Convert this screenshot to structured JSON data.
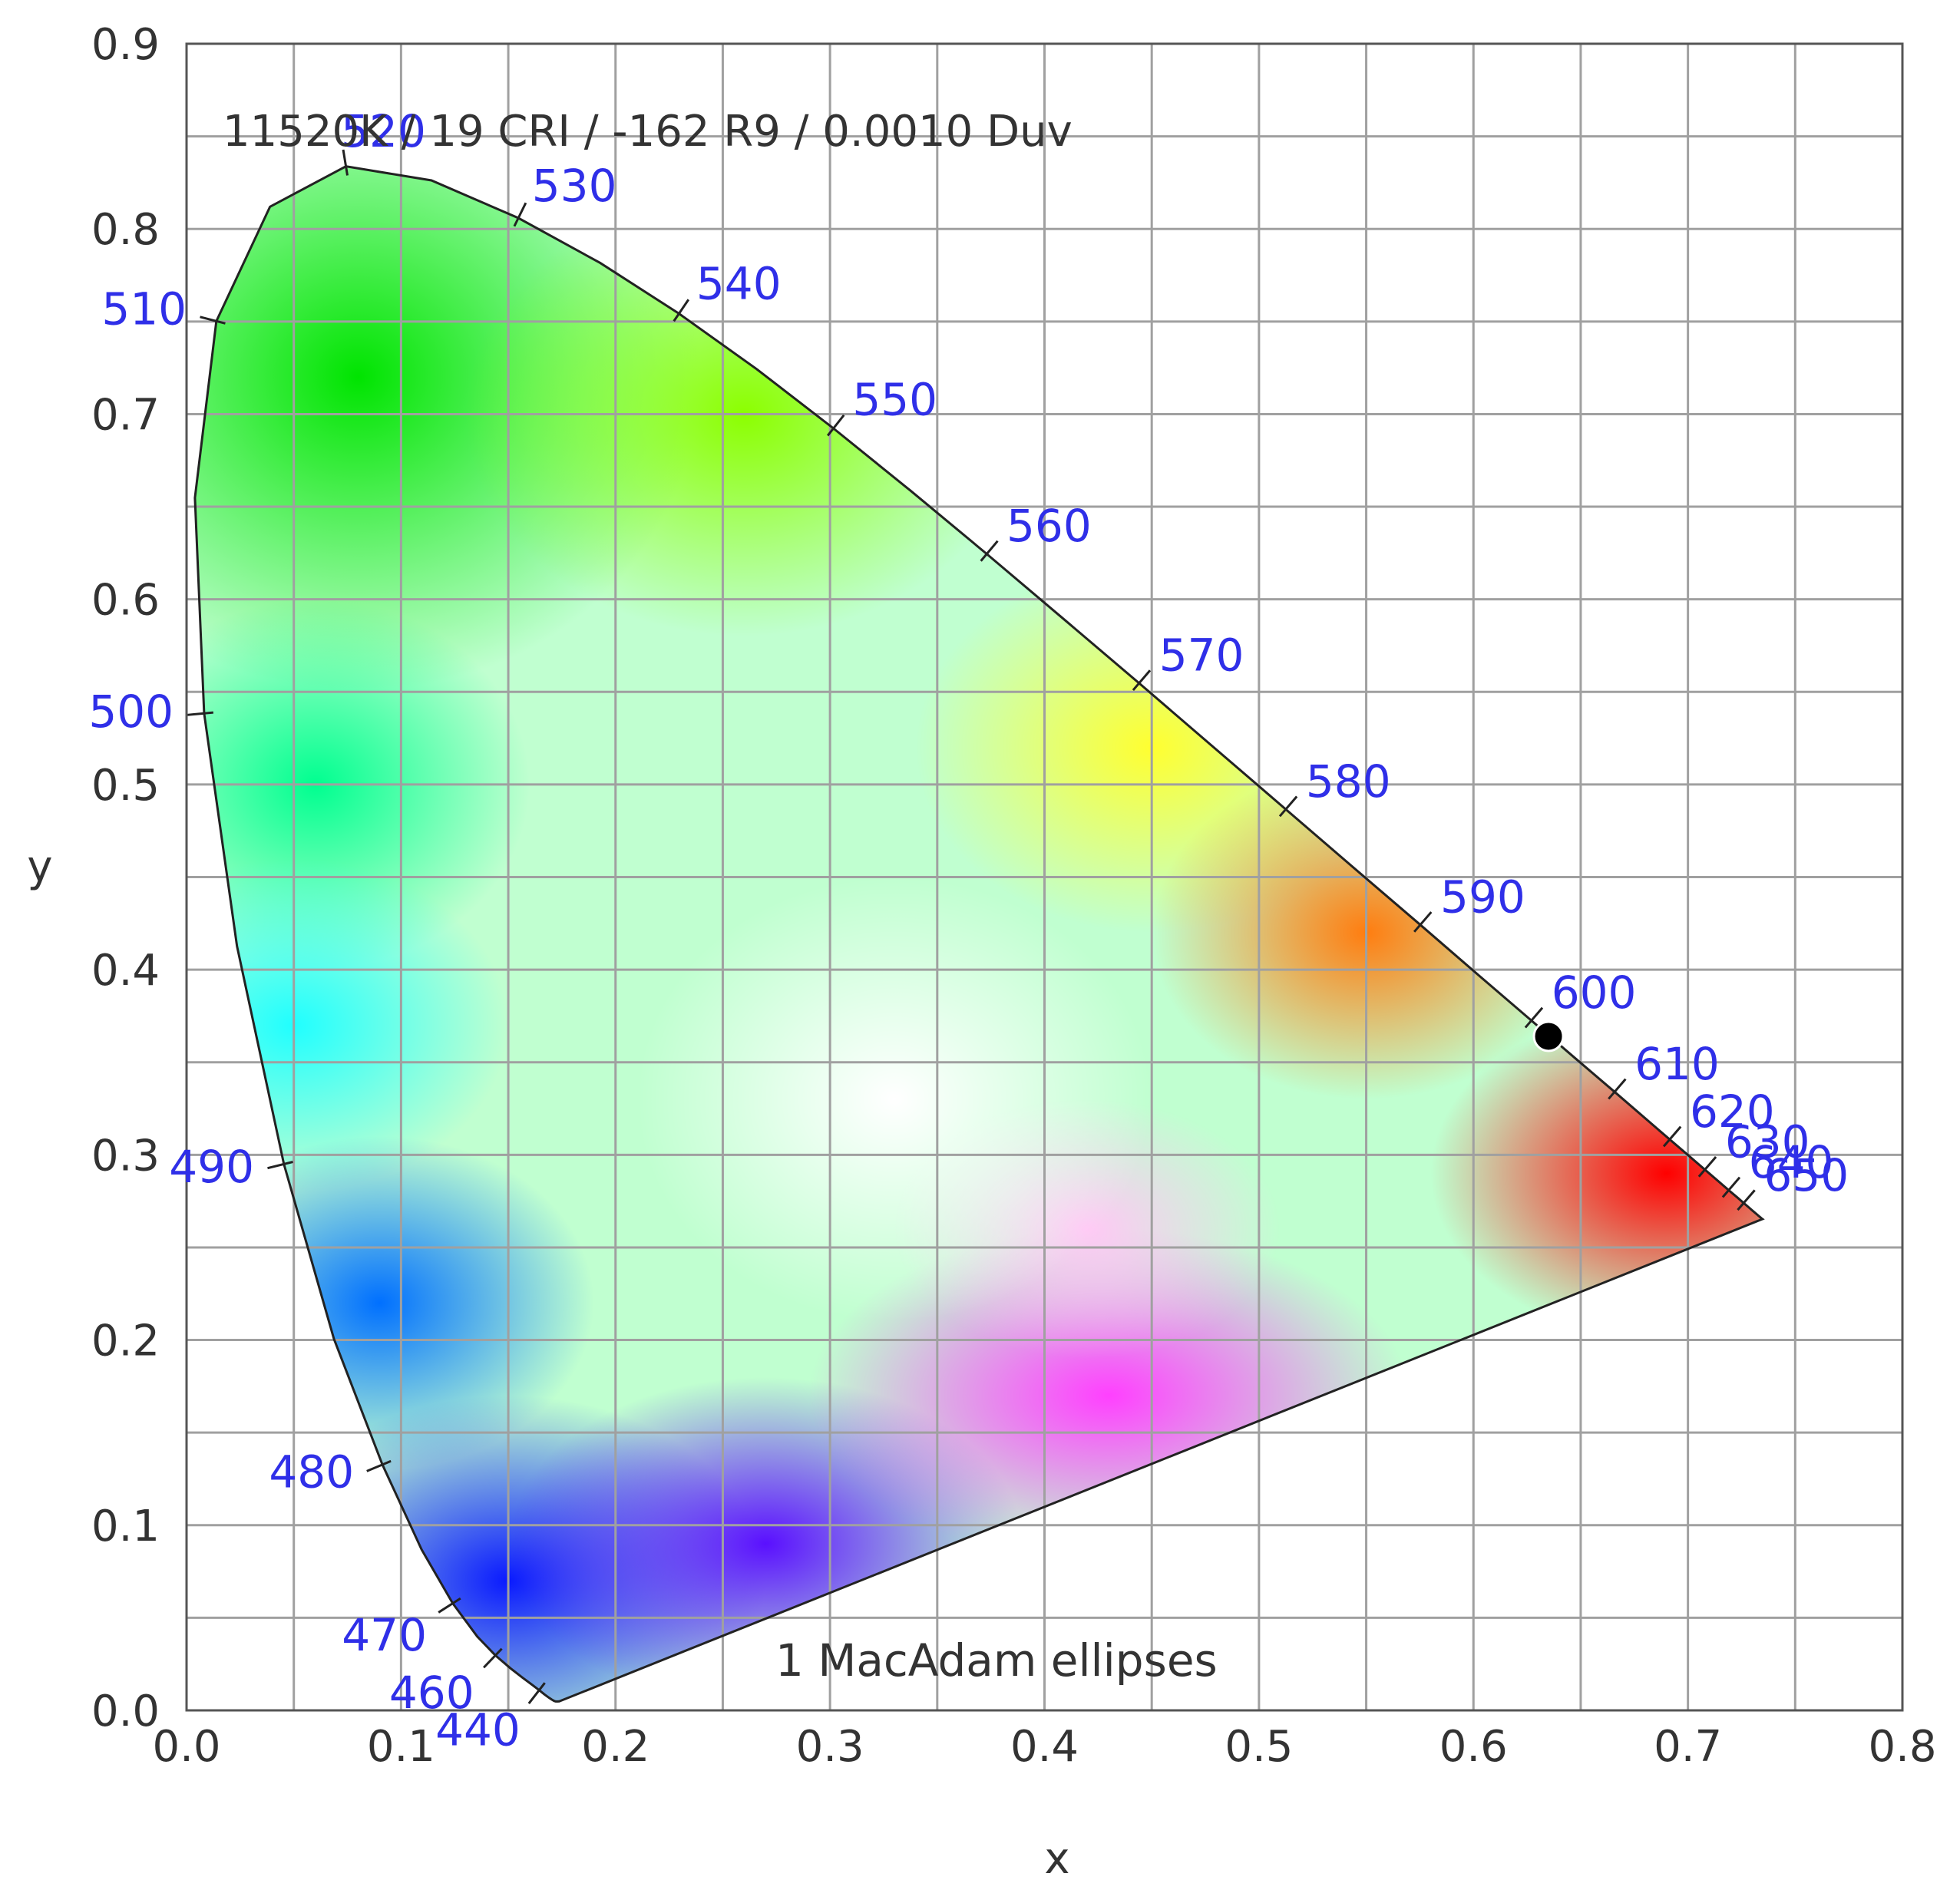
{
  "chart_data": {
    "type": "scatter",
    "chart_kind": "CIE 1931 chromaticity diagram",
    "header": "11520K / 19 CRI / -162 R9 / 0.0010 Duv",
    "footer": "1  MacAdam ellipses",
    "xlabel": "x",
    "ylabel": "y",
    "xlim": [
      0.0,
      0.8
    ],
    "ylim": [
      0.0,
      0.9
    ],
    "xticks": [
      "0.0",
      "0.1",
      "0.2",
      "0.3",
      "0.4",
      "0.5",
      "0.6",
      "0.7",
      "0.8"
    ],
    "yticks": [
      "0.0",
      "0.1",
      "0.2",
      "0.3",
      "0.4",
      "0.5",
      "0.6",
      "0.7",
      "0.8",
      "0.9"
    ],
    "grid": true,
    "grid_step": [
      0.05,
      0.05
    ],
    "spectral_locus": [
      [
        0.1741,
        0.005
      ],
      [
        0.1738,
        0.0049
      ],
      [
        0.1736,
        0.0049
      ],
      [
        0.1733,
        0.0048
      ],
      [
        0.173,
        0.0048
      ],
      [
        0.1726,
        0.0048
      ],
      [
        0.1721,
        0.0048
      ],
      [
        0.1714,
        0.0051
      ],
      [
        0.1703,
        0.0058
      ],
      [
        0.1689,
        0.0069
      ],
      [
        0.1669,
        0.0086
      ],
      [
        0.1644,
        0.0109
      ],
      [
        0.1611,
        0.0138
      ],
      [
        0.1566,
        0.0177
      ],
      [
        0.151,
        0.0227
      ],
      [
        0.144,
        0.0297
      ],
      [
        0.1355,
        0.0399
      ],
      [
        0.1241,
        0.0578
      ],
      [
        0.1096,
        0.0868
      ],
      [
        0.0913,
        0.1327
      ],
      [
        0.0687,
        0.2007
      ],
      [
        0.0454,
        0.295
      ],
      [
        0.0235,
        0.4127
      ],
      [
        0.0082,
        0.5384
      ],
      [
        0.0039,
        0.6548
      ],
      [
        0.0139,
        0.7502
      ],
      [
        0.0389,
        0.812
      ],
      [
        0.0743,
        0.8338
      ],
      [
        0.1142,
        0.8262
      ],
      [
        0.1547,
        0.8059
      ],
      [
        0.1929,
        0.7816
      ],
      [
        0.2296,
        0.7543
      ],
      [
        0.2658,
        0.7243
      ],
      [
        0.3016,
        0.6923
      ],
      [
        0.3373,
        0.6589
      ],
      [
        0.3731,
        0.6245
      ],
      [
        0.4087,
        0.5896
      ],
      [
        0.4441,
        0.5547
      ],
      [
        0.4788,
        0.5202
      ],
      [
        0.5125,
        0.4866
      ],
      [
        0.5448,
        0.4544
      ],
      [
        0.5752,
        0.4242
      ],
      [
        0.6029,
        0.3965
      ],
      [
        0.627,
        0.3725
      ],
      [
        0.6482,
        0.3514
      ],
      [
        0.6658,
        0.334
      ],
      [
        0.6801,
        0.3197
      ],
      [
        0.6915,
        0.3083
      ],
      [
        0.7006,
        0.2993
      ],
      [
        0.7079,
        0.292
      ],
      [
        0.714,
        0.2859
      ],
      [
        0.719,
        0.2809
      ],
      [
        0.723,
        0.277
      ],
      [
        0.726,
        0.274
      ],
      [
        0.7283,
        0.2717
      ],
      [
        0.73,
        0.27
      ],
      [
        0.7311,
        0.2689
      ],
      [
        0.732,
        0.268
      ],
      [
        0.7327,
        0.2673
      ],
      [
        0.7334,
        0.2666
      ],
      [
        0.734,
        0.266
      ],
      [
        0.7344,
        0.2656
      ],
      [
        0.7346,
        0.2654
      ],
      [
        0.7347,
        0.2653
      ]
    ],
    "wavelength_labels": [
      {
        "label": "440",
        "x": 0.1644,
        "y": 0.0109
      },
      {
        "label": "460",
        "x": 0.144,
        "y": 0.0297
      },
      {
        "label": "470",
        "x": 0.1241,
        "y": 0.0578
      },
      {
        "label": "480",
        "x": 0.0913,
        "y": 0.1327
      },
      {
        "label": "490",
        "x": 0.0454,
        "y": 0.295
      },
      {
        "label": "500",
        "x": 0.0082,
        "y": 0.5384
      },
      {
        "label": "510",
        "x": 0.0139,
        "y": 0.7502
      },
      {
        "label": "520",
        "x": 0.0743,
        "y": 0.8338
      },
      {
        "label": "530",
        "x": 0.1547,
        "y": 0.8059
      },
      {
        "label": "540",
        "x": 0.2296,
        "y": 0.7543
      },
      {
        "label": "550",
        "x": 0.3016,
        "y": 0.6923
      },
      {
        "label": "560",
        "x": 0.3731,
        "y": 0.6245
      },
      {
        "label": "570",
        "x": 0.4441,
        "y": 0.5547
      },
      {
        "label": "580",
        "x": 0.5125,
        "y": 0.4866
      },
      {
        "label": "590",
        "x": 0.5752,
        "y": 0.4242
      },
      {
        "label": "600",
        "x": 0.627,
        "y": 0.3725
      },
      {
        "label": "610",
        "x": 0.6658,
        "y": 0.334
      },
      {
        "label": "620",
        "x": 0.6915,
        "y": 0.3083
      },
      {
        "label": "630",
        "x": 0.7079,
        "y": 0.292
      },
      {
        "label": "640",
        "x": 0.719,
        "y": 0.2809
      },
      {
        "label": "650",
        "x": 0.726,
        "y": 0.274
      }
    ],
    "measured_point": {
      "x": 0.635,
      "y": 0.364
    },
    "colors": {
      "wavelength_label": "#2f2fe8",
      "grid": "#a0a0a0",
      "locus_stroke": "#222222",
      "point": "#000000",
      "text": "#333333"
    }
  }
}
